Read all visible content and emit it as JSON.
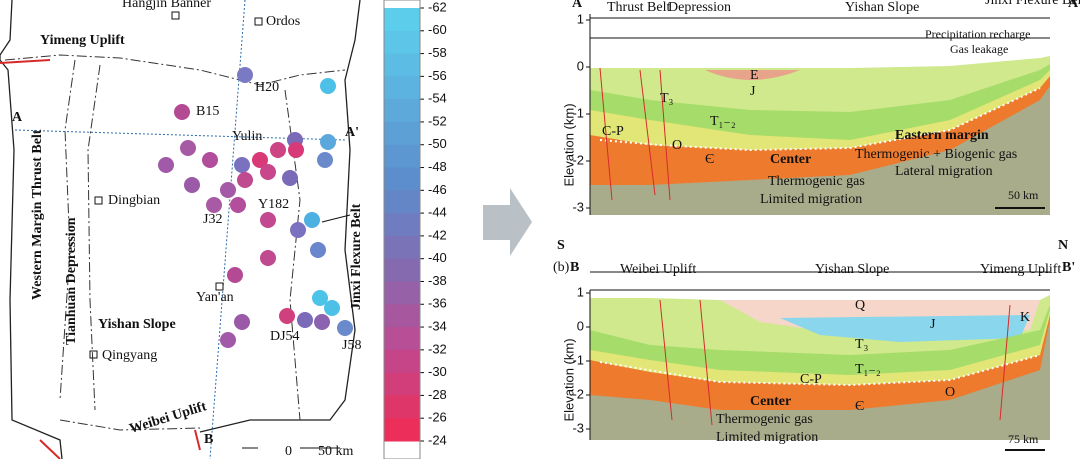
{
  "map": {
    "hangjin_banner": "Hangjin Banner",
    "ordos": "Ordos",
    "yimeng_uplift": "Yimeng Uplift",
    "h20": "H20",
    "a": "A",
    "b15": "B15",
    "yulin": "Yulin",
    "a_prime": "A'",
    "western_margin": "Western Margin Thrust Belt",
    "tianhuan": "Tianhuan Depression",
    "dingbian": "Dingbian",
    "j32": "J32",
    "y182": "Y182",
    "jinxi": "Jinxi Flexure Belt",
    "yanan": "Yan'an",
    "yishan": "Yishan Slope",
    "qingyang": "Qingyang",
    "dj54": "DJ54",
    "j58": "J58",
    "weibei": "Weibei Uplift",
    "b": "B",
    "scale_zero": "0",
    "scale": "50 km"
  },
  "colorbar": {
    "ticks": [
      -62,
      -60,
      -58,
      -56,
      -54,
      -52,
      -50,
      -48,
      -46,
      -44,
      -42,
      -40,
      -38,
      -36,
      -34,
      -32,
      -30,
      -28,
      -26,
      -24
    ]
  },
  "section_a": {
    "start": "A",
    "end": "A'",
    "zones": [
      "Thrust Belt",
      "Depression",
      "Yishan Slope",
      "Jinxi Flexure Belt"
    ],
    "y_label": "Elevation (km)",
    "yticks": [
      1,
      0,
      -1,
      -2,
      -3
    ],
    "recharge": "Precipitation recharge",
    "leakage": "Gas leakage",
    "layers": [
      "E",
      "J",
      "T₃",
      "T₁₋₂",
      "C-P",
      "O",
      "Є"
    ],
    "center": "Center",
    "center_gas": "Thermogenic gas",
    "center_migration": "Limited migration",
    "east": "Eastern margin",
    "east_gas": "Thermogenic + Biogenic gas",
    "east_migration": "Lateral migration",
    "scale": "50 km"
  },
  "section_b": {
    "panel": "(b)",
    "south": "S",
    "north": "N",
    "start": "B",
    "end": "B'",
    "zones": [
      "Weibei Uplift",
      "Yishan Slope",
      "Yimeng Uplift"
    ],
    "y_label": "Elevation (km)",
    "yticks": [
      1,
      0,
      -1,
      -2,
      -3
    ],
    "layers": [
      "Q",
      "J",
      "K",
      "T₃",
      "C-P",
      "T₁₋₂",
      "O",
      "Є"
    ],
    "center": "Center",
    "center_gas": "Thermogenic gas",
    "center_migration": "Limited migration",
    "scale": "75 km"
  }
}
